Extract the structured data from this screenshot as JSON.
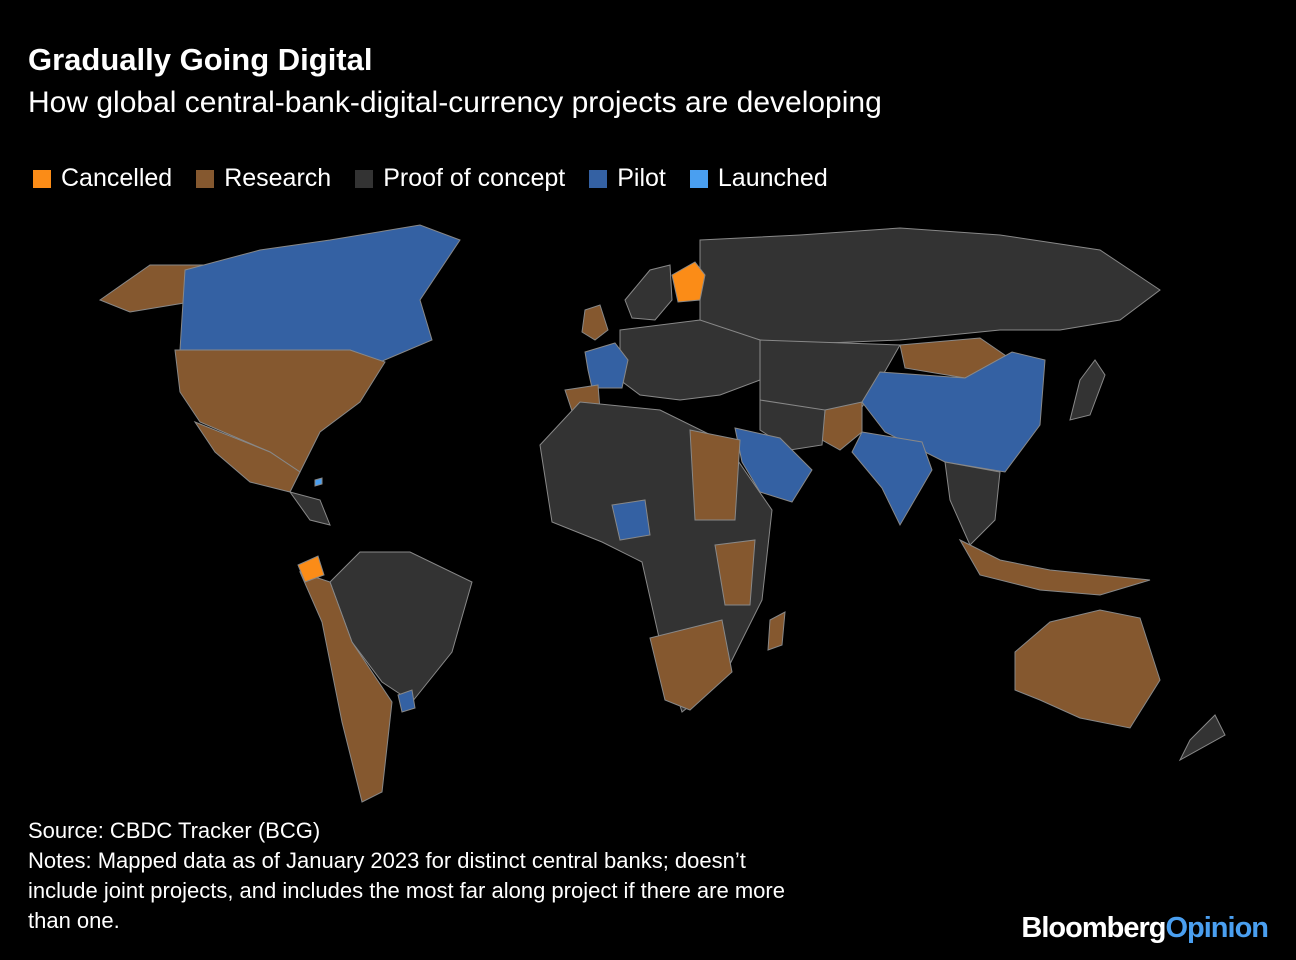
{
  "header": {
    "title": "Gradually Going Digital",
    "subtitle": "How global central-bank-digital-currency projects are developing"
  },
  "legend": [
    {
      "label": "Cancelled",
      "color": "#fb8c17"
    },
    {
      "label": "Research",
      "color": "#85582f"
    },
    {
      "label": "Proof of concept",
      "color": "#333333"
    },
    {
      "label": "Pilot",
      "color": "#3461a3"
    },
    {
      "label": "Launched",
      "color": "#4a9ff0"
    }
  ],
  "footer": {
    "source": "Source: CBDC Tracker (BCG)",
    "notes": [
      "Notes: Mapped data as of January 2023 for distinct central banks; doesn’t",
      "include joint projects, and includes the most far along project if there are more",
      "than one."
    ],
    "logo": [
      "Bloomberg",
      "Opinion"
    ]
  }
}
